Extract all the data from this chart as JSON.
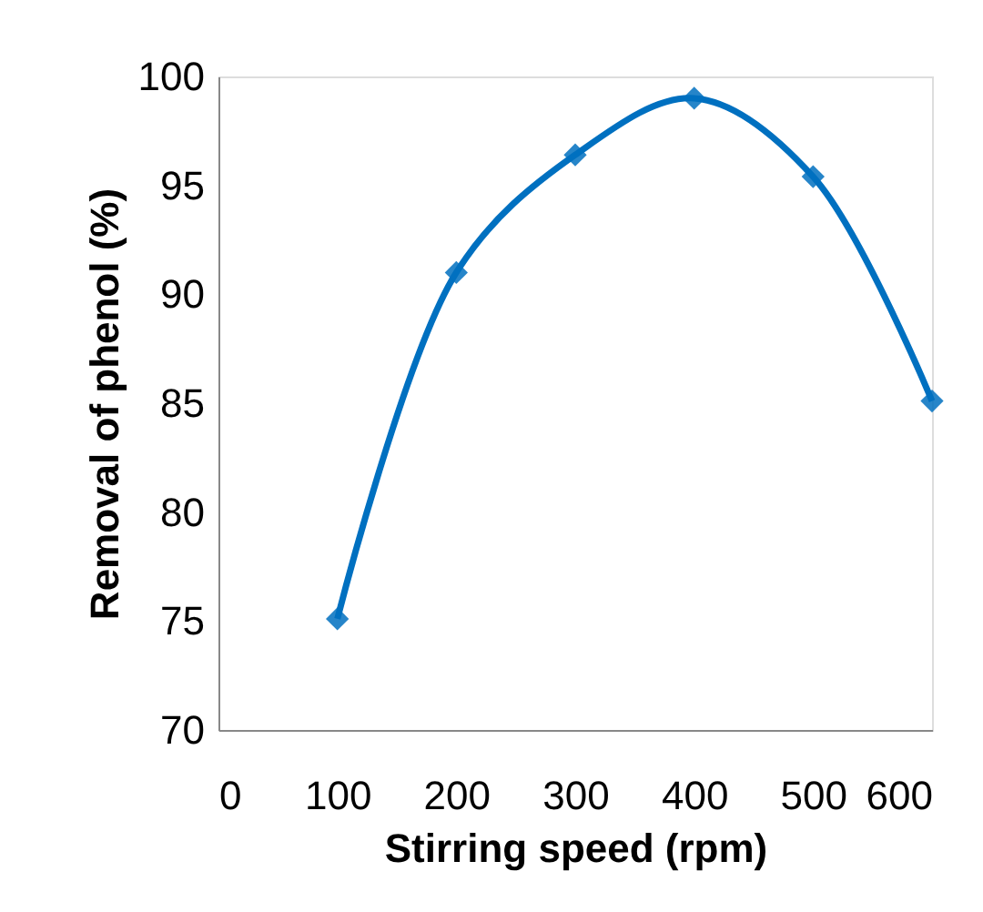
{
  "chart_data": {
    "type": "line",
    "xlabel": "Stirring speed (rpm)",
    "ylabel": "Removal of phenol (%)",
    "x": [
      100,
      200,
      300,
      400,
      500,
      600
    ],
    "series": [
      {
        "color": "#0070c0",
        "values": [
          75.1,
          91.0,
          96.4,
          99.0,
          95.4,
          85.1
        ]
      }
    ],
    "xlim": [
      0,
      600
    ],
    "xticks": [
      0,
      100,
      200,
      300,
      400,
      500,
      600
    ],
    "ylim": [
      70,
      100
    ],
    "yticks": [
      70,
      75,
      80,
      85,
      90,
      95,
      100
    ],
    "grid": false,
    "legend": false,
    "marker": "diamond",
    "line_style": "solid"
  }
}
